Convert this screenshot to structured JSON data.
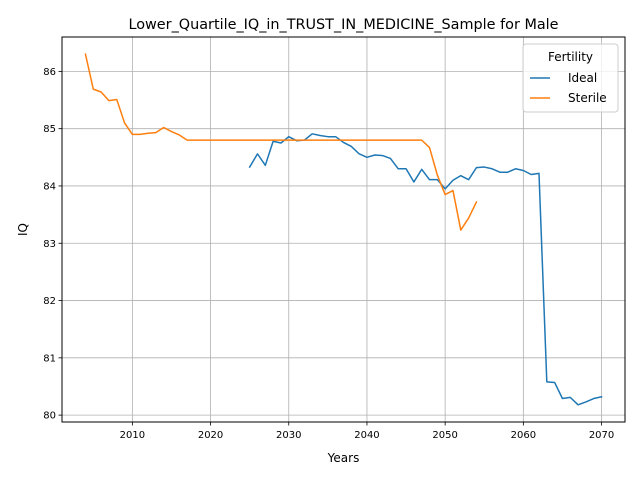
{
  "chart_data": {
    "type": "line",
    "title": "Lower_Quartile_IQ_in_TRUST_IN_MEDICINE_Sample for Male",
    "xlabel": "Years",
    "ylabel": "IQ",
    "xlim": [
      2001,
      2073
    ],
    "ylim": [
      79.88,
      86.6
    ],
    "xticks": [
      2010,
      2020,
      2030,
      2040,
      2050,
      2060,
      2070
    ],
    "yticks": [
      80,
      81,
      82,
      83,
      84,
      85,
      86
    ],
    "grid": true,
    "legend": {
      "title": "Fertility",
      "placement": "top-right"
    },
    "series": [
      {
        "name": "Ideal",
        "color": "#1f77b4",
        "x": [
          2025,
          2026,
          2027,
          2028,
          2029,
          2030,
          2031,
          2032,
          2033,
          2034,
          2035,
          2036,
          2037,
          2038,
          2039,
          2040,
          2041,
          2042,
          2043,
          2044,
          2045,
          2046,
          2047,
          2048,
          2049,
          2050,
          2051,
          2052,
          2053,
          2054,
          2055,
          2056,
          2057,
          2058,
          2059,
          2060,
          2061,
          2062,
          2063,
          2064,
          2065,
          2066,
          2067,
          2068,
          2069,
          2070
        ],
        "y": [
          84.33,
          84.56,
          84.36,
          84.78,
          84.75,
          84.86,
          84.79,
          84.8,
          84.91,
          84.88,
          84.86,
          84.86,
          84.76,
          84.69,
          84.56,
          84.5,
          84.54,
          84.53,
          84.48,
          84.3,
          84.3,
          84.07,
          84.29,
          84.11,
          84.11,
          83.95,
          84.1,
          84.18,
          84.11,
          84.32,
          84.33,
          84.3,
          84.24,
          84.24,
          84.3,
          84.27,
          84.2,
          84.22,
          80.58,
          80.57,
          80.29,
          80.31,
          80.18,
          80.23,
          80.29,
          80.32
        ]
      },
      {
        "name": "Sterile",
        "color": "#ff7f0e",
        "x": [
          2004,
          2005,
          2006,
          2007,
          2008,
          2009,
          2010,
          2011,
          2012,
          2013,
          2014,
          2015,
          2016,
          2017,
          2018,
          2019,
          2020,
          2021,
          2022,
          2023,
          2024,
          2025,
          2026,
          2027,
          2028,
          2029,
          2030,
          2031,
          2032,
          2033,
          2034,
          2035,
          2036,
          2037,
          2038,
          2039,
          2040,
          2041,
          2042,
          2043,
          2044,
          2045,
          2046,
          2047,
          2048,
          2049,
          2050,
          2051,
          2052,
          2053,
          2054
        ],
        "y": [
          86.3,
          85.69,
          85.64,
          85.49,
          85.51,
          85.1,
          84.9,
          84.9,
          84.92,
          84.93,
          85.02,
          84.95,
          84.89,
          84.8,
          84.8,
          84.8,
          84.8,
          84.8,
          84.8,
          84.8,
          84.8,
          84.8,
          84.8,
          84.8,
          84.8,
          84.8,
          84.8,
          84.8,
          84.8,
          84.8,
          84.8,
          84.8,
          84.8,
          84.8,
          84.8,
          84.8,
          84.8,
          84.8,
          84.8,
          84.8,
          84.8,
          84.8,
          84.8,
          84.8,
          84.67,
          84.19,
          83.85,
          83.92,
          83.23,
          83.44,
          83.72
        ]
      }
    ]
  }
}
